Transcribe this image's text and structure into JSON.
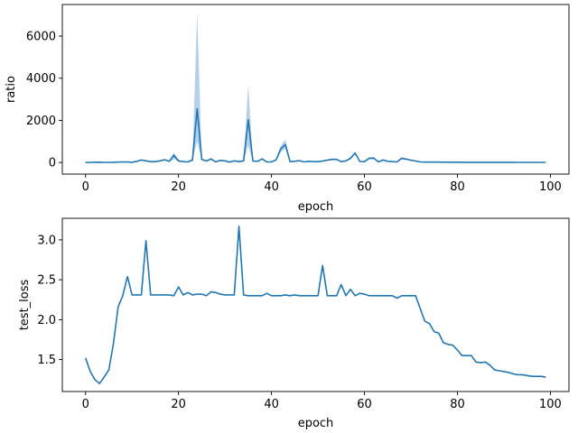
{
  "chart_data": [
    {
      "type": "line",
      "xlabel": "epoch",
      "ylabel": "ratio",
      "xlim": [
        -5,
        104
      ],
      "ylim": [
        -550,
        7500
      ],
      "xticks": [
        0,
        20,
        40,
        60,
        80,
        100
      ],
      "yticks": [
        0,
        2000,
        4000,
        6000
      ],
      "grid": false,
      "colors": {
        "line": "#1f77b4",
        "band": "#a8c8e4"
      },
      "series": [
        {
          "x": [
            0,
            1,
            2,
            3,
            4,
            5,
            6,
            7,
            8,
            9,
            10,
            11,
            12,
            13,
            14,
            15,
            16,
            17,
            18,
            19,
            20,
            21,
            22,
            23,
            24,
            25,
            26,
            27,
            28,
            29,
            30,
            31,
            32,
            33,
            34,
            35,
            36,
            37,
            38,
            39,
            40,
            41,
            42,
            43,
            44,
            45,
            46,
            47,
            48,
            49,
            50,
            51,
            52,
            53,
            54,
            55,
            56,
            57,
            58,
            59,
            60,
            61,
            62,
            63,
            64,
            65,
            66,
            67,
            68,
            69,
            70,
            71,
            72,
            73,
            74,
            75,
            76,
            77,
            78,
            79,
            80,
            81,
            82,
            83,
            84,
            85,
            86,
            87,
            88,
            89,
            90,
            91,
            92,
            93,
            94,
            95,
            96,
            97,
            98,
            99
          ],
          "y": [
            0,
            5,
            10,
            15,
            5,
            5,
            10,
            20,
            30,
            25,
            10,
            60,
            120,
            80,
            40,
            40,
            80,
            130,
            60,
            340,
            80,
            40,
            30,
            120,
            2550,
            150,
            70,
            170,
            30,
            100,
            80,
            20,
            80,
            40,
            80,
            2030,
            70,
            60,
            170,
            30,
            30,
            130,
            650,
            850,
            40,
            60,
            90,
            30,
            60,
            40,
            40,
            70,
            110,
            150,
            150,
            40,
            80,
            200,
            450,
            50,
            40,
            200,
            210,
            30,
            120,
            60,
            40,
            30,
            200,
            160,
            110,
            70,
            30,
            20,
            20,
            20,
            20,
            15,
            15,
            15,
            15,
            10,
            10,
            10,
            10,
            10,
            10,
            10,
            10,
            10,
            10,
            10,
            10,
            5,
            5,
            5,
            5,
            5,
            5,
            5
          ],
          "band_low": [
            0,
            0,
            5,
            10,
            0,
            0,
            5,
            10,
            20,
            15,
            5,
            40,
            90,
            60,
            30,
            30,
            50,
            90,
            40,
            160,
            50,
            25,
            20,
            80,
            1000,
            100,
            50,
            120,
            20,
            70,
            50,
            10,
            50,
            25,
            50,
            800,
            50,
            40,
            120,
            20,
            20,
            100,
            500,
            650,
            25,
            40,
            60,
            20,
            40,
            25,
            25,
            50,
            80,
            110,
            110,
            25,
            60,
            150,
            380,
            30,
            25,
            150,
            160,
            20,
            80,
            40,
            25,
            20,
            150,
            120,
            80,
            50,
            20,
            10,
            10,
            10,
            10,
            8,
            8,
            8,
            8,
            5,
            5,
            5,
            5,
            5,
            5,
            5,
            5,
            5,
            5,
            5,
            5,
            2,
            2,
            2,
            2,
            2,
            2,
            2
          ],
          "band_high": [
            0,
            10,
            15,
            20,
            10,
            10,
            15,
            30,
            40,
            35,
            15,
            80,
            150,
            100,
            50,
            50,
            110,
            170,
            80,
            480,
            110,
            55,
            40,
            160,
            7150,
            200,
            90,
            220,
            40,
            130,
            110,
            30,
            110,
            55,
            110,
            3680,
            90,
            80,
            220,
            40,
            40,
            160,
            800,
            1100,
            55,
            80,
            120,
            40,
            80,
            55,
            55,
            90,
            140,
            190,
            190,
            55,
            100,
            250,
            520,
            70,
            55,
            250,
            260,
            40,
            160,
            80,
            55,
            40,
            250,
            200,
            140,
            90,
            40,
            30,
            30,
            30,
            30,
            22,
            22,
            22,
            22,
            15,
            15,
            15,
            15,
            15,
            15,
            15,
            15,
            15,
            15,
            15,
            15,
            8,
            8,
            8,
            8,
            8,
            8,
            8
          ]
        }
      ]
    },
    {
      "type": "line",
      "xlabel": "epoch",
      "ylabel": "test_loss",
      "xlim": [
        -5,
        104
      ],
      "ylim": [
        1.1,
        3.27
      ],
      "xticks": [
        0,
        20,
        40,
        60,
        80,
        100
      ],
      "yticks": [
        1.5,
        2.0,
        2.5,
        3.0
      ],
      "grid": false,
      "colors": {
        "line": "#1f77b4"
      },
      "series": [
        {
          "x": [
            0,
            1,
            2,
            3,
            4,
            5,
            6,
            7,
            8,
            9,
            10,
            11,
            12,
            13,
            14,
            15,
            16,
            17,
            18,
            19,
            20,
            21,
            22,
            23,
            24,
            25,
            26,
            27,
            28,
            29,
            30,
            31,
            32,
            33,
            34,
            35,
            36,
            37,
            38,
            39,
            40,
            41,
            42,
            43,
            44,
            45,
            46,
            47,
            48,
            49,
            50,
            51,
            52,
            53,
            54,
            55,
            56,
            57,
            58,
            59,
            60,
            61,
            62,
            63,
            64,
            65,
            66,
            67,
            68,
            69,
            70,
            71,
            72,
            73,
            74,
            75,
            76,
            77,
            78,
            79,
            80,
            81,
            82,
            83,
            84,
            85,
            86,
            87,
            88,
            89,
            90,
            91,
            92,
            93,
            94,
            95,
            96,
            97,
            98,
            99
          ],
          "y": [
            1.52,
            1.35,
            1.25,
            1.2,
            1.28,
            1.37,
            1.7,
            2.16,
            2.3,
            2.54,
            2.31,
            2.31,
            2.31,
            2.99,
            2.31,
            2.31,
            2.31,
            2.31,
            2.31,
            2.3,
            2.41,
            2.31,
            2.34,
            2.31,
            2.32,
            2.32,
            2.3,
            2.35,
            2.34,
            2.32,
            2.31,
            2.31,
            2.31,
            3.17,
            2.31,
            2.3,
            2.3,
            2.3,
            2.3,
            2.33,
            2.3,
            2.3,
            2.3,
            2.31,
            2.3,
            2.31,
            2.3,
            2.3,
            2.3,
            2.3,
            2.3,
            2.68,
            2.3,
            2.3,
            2.3,
            2.44,
            2.3,
            2.38,
            2.3,
            2.33,
            2.32,
            2.3,
            2.3,
            2.3,
            2.3,
            2.3,
            2.3,
            2.27,
            2.3,
            2.3,
            2.3,
            2.3,
            2.14,
            1.98,
            1.95,
            1.85,
            1.83,
            1.71,
            1.69,
            1.68,
            1.62,
            1.55,
            1.55,
            1.55,
            1.47,
            1.46,
            1.47,
            1.43,
            1.37,
            1.36,
            1.35,
            1.34,
            1.32,
            1.31,
            1.31,
            1.3,
            1.29,
            1.29,
            1.29,
            1.28
          ]
        }
      ]
    }
  ]
}
